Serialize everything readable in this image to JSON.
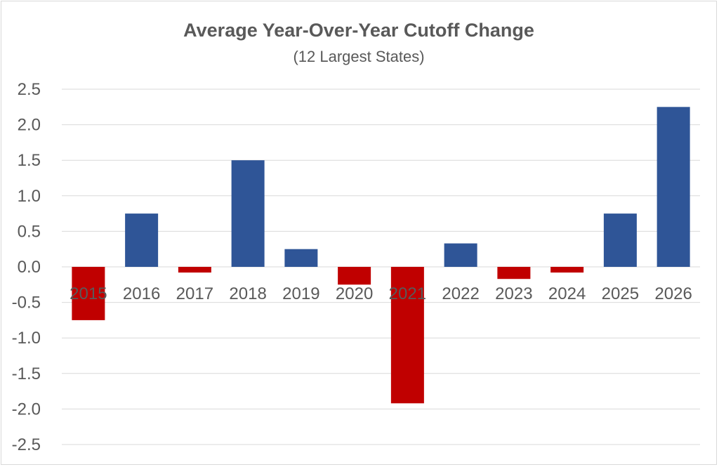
{
  "chart_data": {
    "type": "bar",
    "title": "Average Year-Over-Year Cutoff Change",
    "subtitle": "(12 Largest States)",
    "xlabel": "",
    "ylabel": "",
    "categories": [
      "2015",
      "2016",
      "2017",
      "2018",
      "2019",
      "2020",
      "2021",
      "2022",
      "2023",
      "2024",
      "2025",
      "2026"
    ],
    "values": [
      -0.75,
      0.75,
      -0.08,
      1.5,
      0.25,
      -0.25,
      -1.92,
      0.33,
      -0.17,
      -0.08,
      0.75,
      2.25
    ],
    "ylim": [
      -2.5,
      2.5
    ],
    "yticks": [
      "2.5",
      "2.0",
      "1.5",
      "1.0",
      "0.5",
      "0.0",
      "-0.5",
      "-1.0",
      "-1.5",
      "-2.0",
      "-2.5"
    ],
    "ytick_values": [
      2.5,
      2.0,
      1.5,
      1.0,
      0.5,
      0.0,
      -0.5,
      -1.0,
      -1.5,
      -2.0,
      -2.5
    ],
    "grid": true,
    "colors": {
      "positive": "#2f5597",
      "negative": "#c00000",
      "text": "#595959",
      "grid": "#d9d9d9"
    }
  }
}
